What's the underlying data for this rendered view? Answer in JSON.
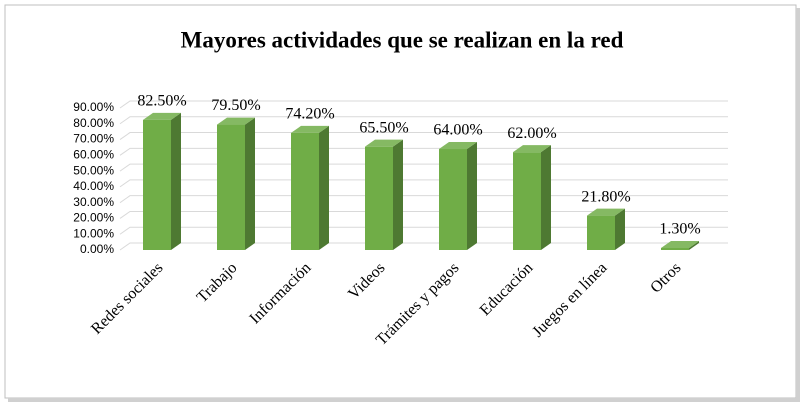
{
  "chart_data": {
    "type": "bar3d",
    "title": "Mayores actividades que se realizan en la red",
    "categories": [
      "Redes sociales",
      "Trabajo",
      "Información",
      "Videos",
      "Trámites y pagos",
      "Educación",
      "Juegos en línea",
      "Otros"
    ],
    "values": [
      82.5,
      79.5,
      74.2,
      65.5,
      64.0,
      62.0,
      21.8,
      1.3
    ],
    "value_labels": [
      "82.50%",
      "79.50%",
      "74.20%",
      "65.50%",
      "64.00%",
      "62.00%",
      "21.80%",
      "1.30%"
    ],
    "color": "#70ad47",
    "ylim": [
      0,
      90
    ],
    "yticks": [
      {
        "value": 0,
        "label": "0.00%"
      },
      {
        "value": 10,
        "label": "10.00%"
      },
      {
        "value": 20,
        "label": "20.00%"
      },
      {
        "value": 30,
        "label": "30.00%"
      },
      {
        "value": 40,
        "label": "40.00%"
      },
      {
        "value": 50,
        "label": "50.00%"
      },
      {
        "value": 60,
        "label": "60.00%"
      },
      {
        "value": 70,
        "label": "70.00%"
      },
      {
        "value": 80,
        "label": "80.00%"
      },
      {
        "value": 90,
        "label": "90.00%"
      }
    ],
    "grid": true
  }
}
